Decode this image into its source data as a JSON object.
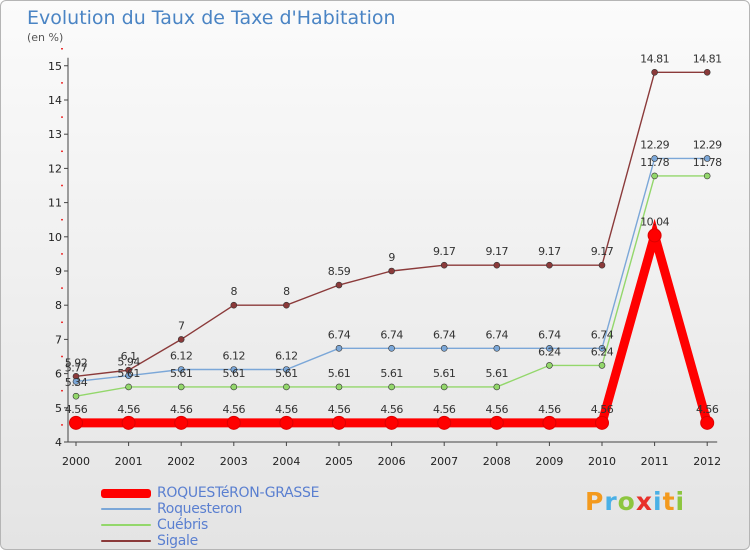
{
  "header": {
    "title": "Evolution du Taux de Taxe d'Habitation",
    "unit": "(en %)"
  },
  "brand": {
    "text": "Proxiti",
    "colors": [
      "#f39a1e",
      "#4ab0e6",
      "#8dc63f",
      "#e8312b",
      "#4ab0e6",
      "#f39a1e",
      "#8dc63f"
    ]
  },
  "chart_data": {
    "type": "line",
    "title": "Evolution du Taux de Taxe d'Habitation",
    "ylabel": "(en %)",
    "ylim": [
      4,
      15
    ],
    "x": [
      "2000",
      "2001",
      "2002",
      "2003",
      "2004",
      "2005",
      "2006",
      "2007",
      "2008",
      "2009",
      "2010",
      "2011",
      "2012"
    ],
    "yticks": [
      4,
      5,
      6,
      7,
      8,
      9,
      10,
      11,
      12,
      13,
      14,
      15
    ],
    "grid": false,
    "legend_position": "bottom-left",
    "series": [
      {
        "name": "ROQUESTéRON-GRASSE",
        "color": "#ff0000",
        "values": [
          4.56,
          4.56,
          4.56,
          4.56,
          4.56,
          4.56,
          4.56,
          4.56,
          4.56,
          4.56,
          4.56,
          10.04,
          4.56
        ],
        "labels": [
          "4.56",
          "4.56",
          "4.56",
          "4.56",
          "4.56",
          "4.56",
          "4.56",
          "4.56",
          "4.56",
          "4.56",
          "4.56",
          "10.04",
          "4.56"
        ]
      },
      {
        "name": "Roquesteron",
        "color": "#7ba7d8",
        "values": [
          5.77,
          5.94,
          6.12,
          6.12,
          6.12,
          6.74,
          6.74,
          6.74,
          6.74,
          6.74,
          6.74,
          12.29,
          12.29
        ],
        "labels": [
          "5.77",
          "5.94",
          "6.12",
          "6.12",
          "6.12",
          "6.74",
          "6.74",
          "6.74",
          "6.74",
          "6.74",
          "6.74",
          "12.29",
          "12.29"
        ]
      },
      {
        "name": "Cuébris",
        "color": "#93d76b",
        "values": [
          5.34,
          5.61,
          5.61,
          5.61,
          5.61,
          5.61,
          5.61,
          5.61,
          5.61,
          6.24,
          6.24,
          11.78,
          11.78
        ],
        "labels": [
          "5.34",
          "5.61",
          "5.61",
          "5.61",
          "5.61",
          "5.61",
          "5.61",
          "5.61",
          "5.61",
          "6.24",
          "6.24",
          "11.78",
          "11.78"
        ]
      },
      {
        "name": "Sigale",
        "color": "#8b3a3a",
        "values": [
          5.92,
          6.1,
          7,
          8,
          8,
          8.59,
          9,
          9.17,
          9.17,
          9.17,
          9.17,
          14.81,
          14.81
        ],
        "labels": [
          "5.92",
          "6.1",
          "7",
          "8",
          "8",
          "8.59",
          "9",
          "9.17",
          "9.17",
          "9.17",
          "9.17",
          "14.81",
          "14.81"
        ]
      }
    ]
  }
}
